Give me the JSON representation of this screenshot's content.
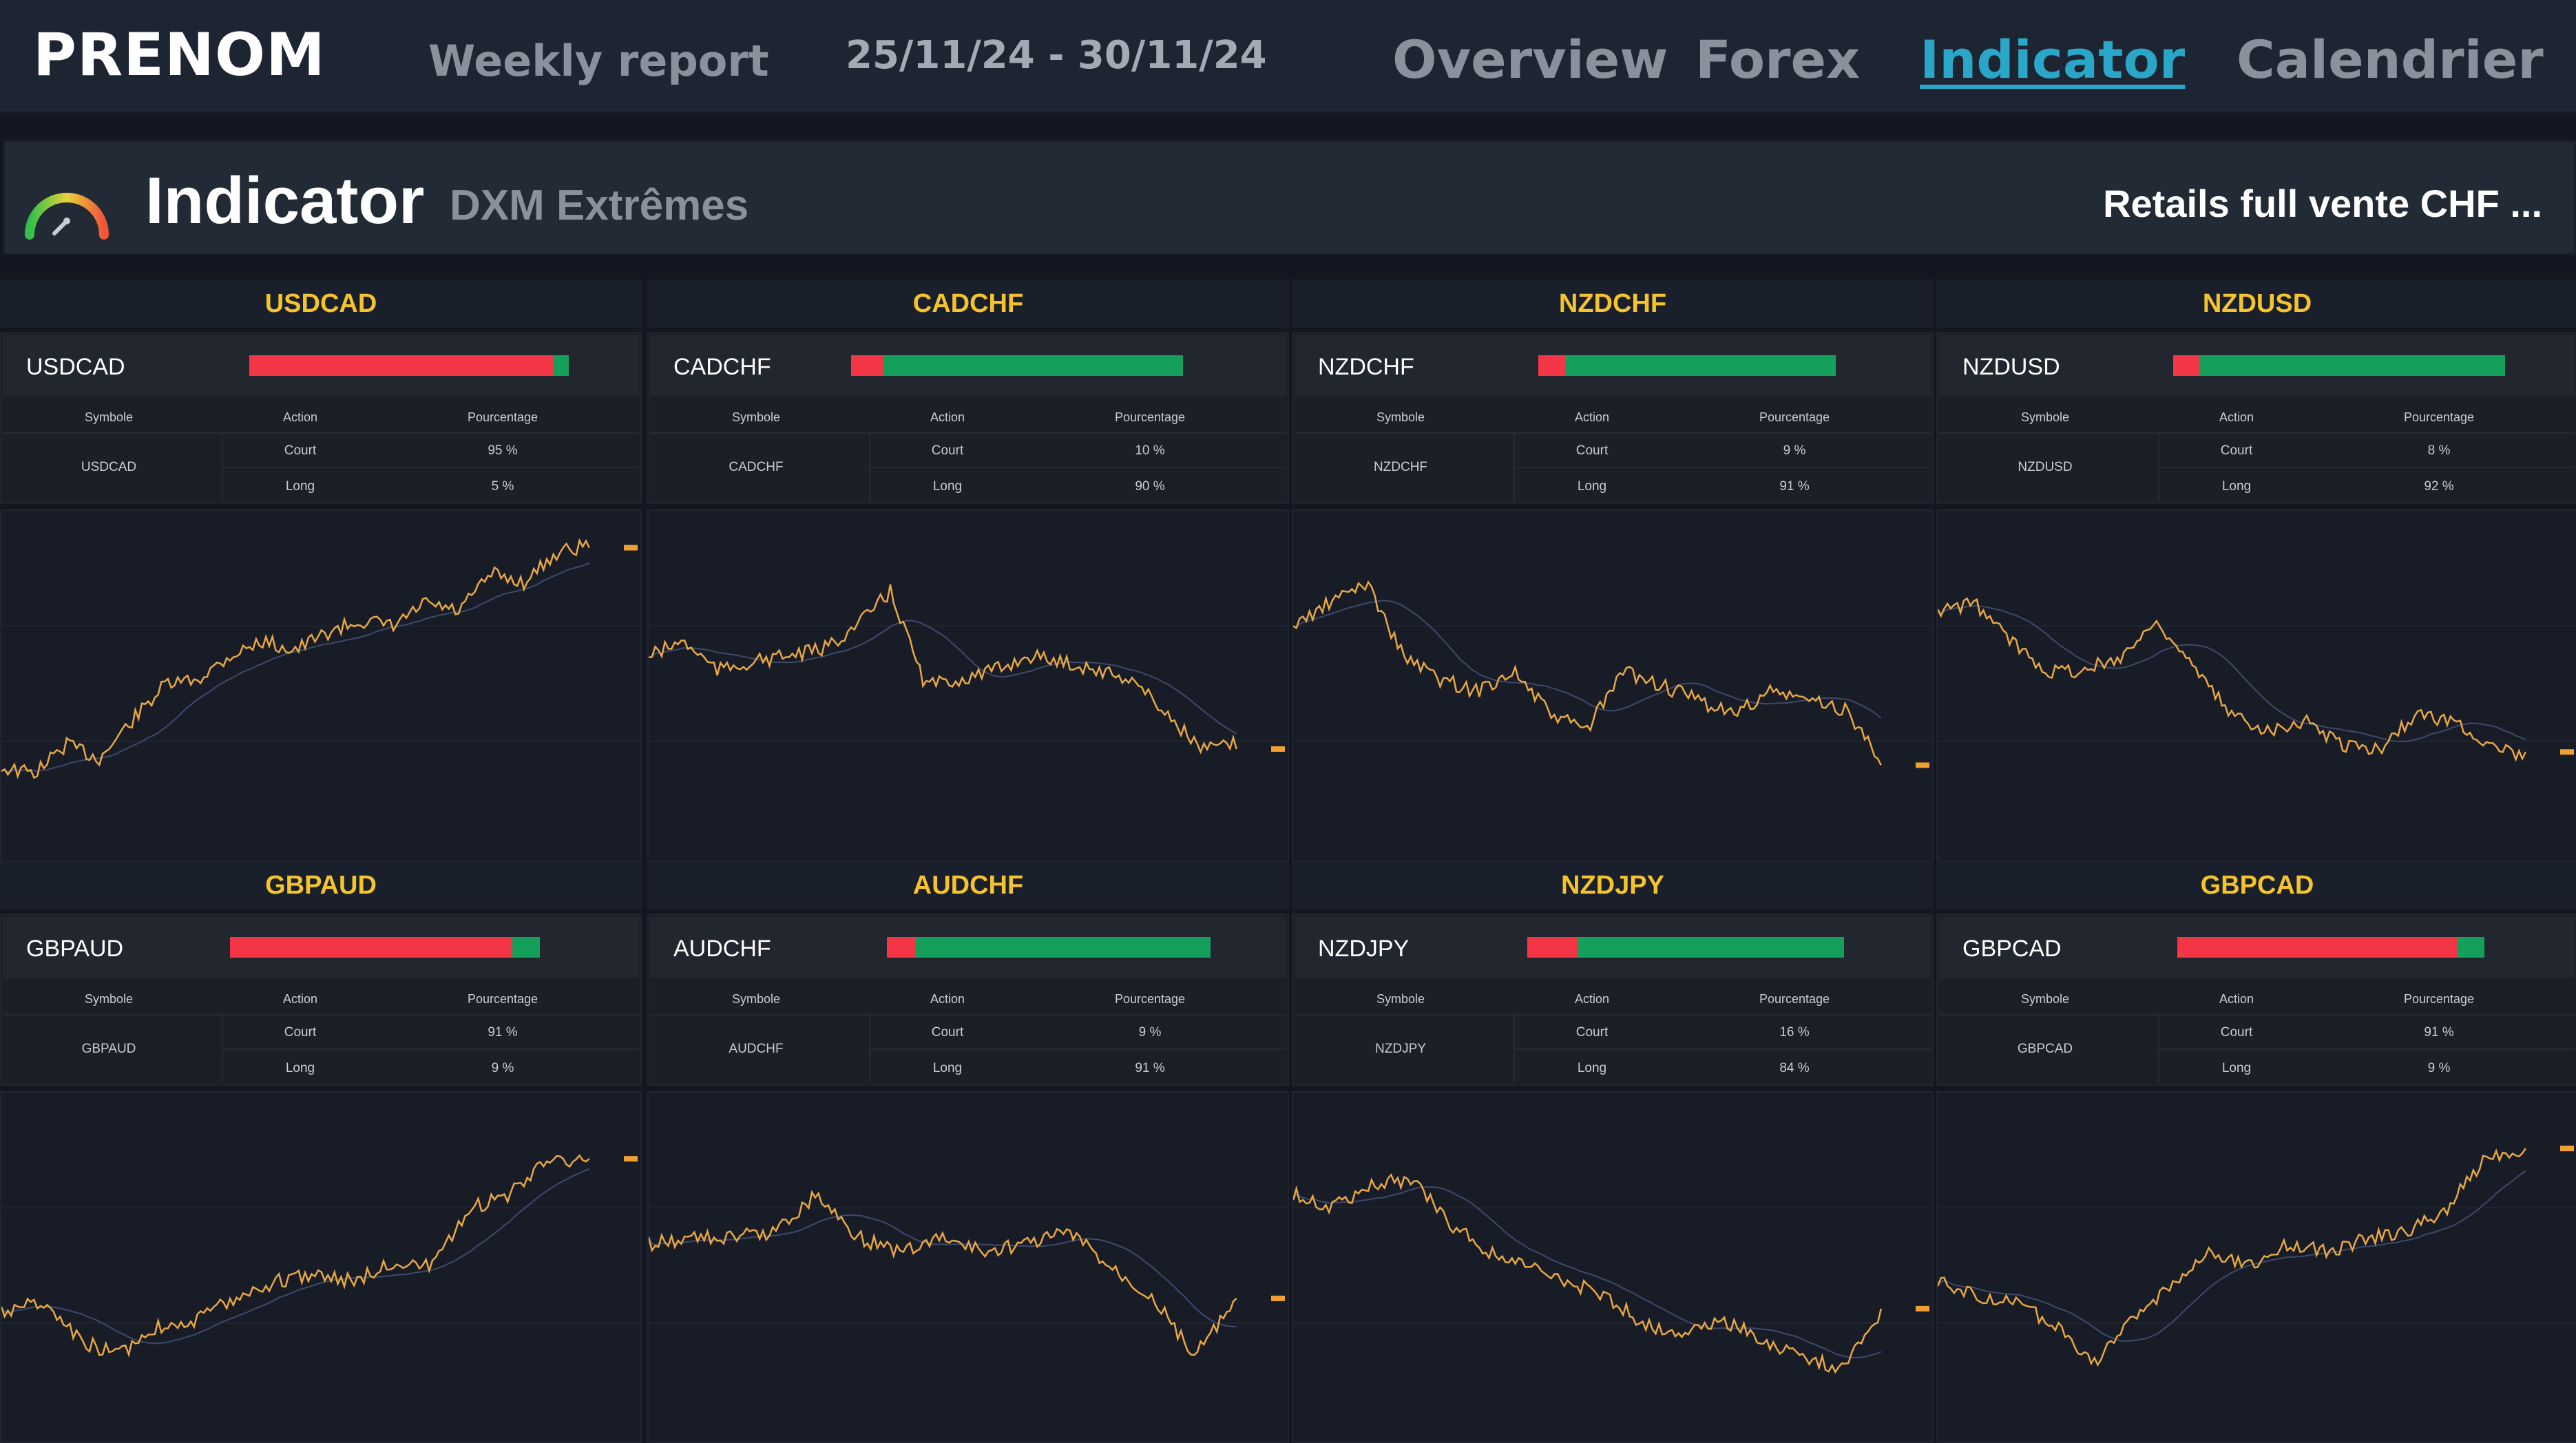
{
  "header": {
    "brand": "PRENOM",
    "subtitle": "Weekly report",
    "date_range": "25/11/24 - 30/11/24",
    "nav": [
      {
        "label": "Overview",
        "active": false
      },
      {
        "label": "Forex",
        "active": false
      },
      {
        "label": "Indicator",
        "active": true
      },
      {
        "label": "Calendrier",
        "active": false
      }
    ]
  },
  "indicator": {
    "title": "Indicator",
    "subtitle": "DXM Extrêmes",
    "right_text": "Retails full vente CHF ...",
    "icon": "gauge-icon"
  },
  "table_headers": {
    "symbol": "Symbole",
    "action": "Action",
    "percentage": "Pourcentage"
  },
  "colors": {
    "short": "#f23645",
    "long": "#14a05a",
    "title": "#f5c42c",
    "line": "#e8a844",
    "active_nav": "#2aa6c8"
  },
  "pairs": [
    {
      "symbol": "USDCAD",
      "court_label": "Court",
      "court": "95 %",
      "long_label": "Long",
      "long": "5 %",
      "court_frac": 0.95,
      "chart_data": {
        "type": "line",
        "trend": [
          0.78,
          0.8,
          0.7,
          0.75,
          0.62,
          0.5,
          0.48,
          0.4,
          0.35,
          0.38,
          0.32,
          0.28,
          0.3,
          0.22,
          0.25,
          0.12,
          0.15,
          0.05,
          0.02
        ]
      }
    },
    {
      "symbol": "CADCHF",
      "court_label": "Court",
      "court": "10 %",
      "long_label": "Long",
      "long": "90 %",
      "court_frac": 0.1,
      "chart_data": {
        "type": "line",
        "trend": [
          0.4,
          0.35,
          0.45,
          0.42,
          0.4,
          0.38,
          0.3,
          0.18,
          0.5,
          0.48,
          0.45,
          0.4,
          0.42,
          0.45,
          0.48,
          0.6,
          0.72,
          0.7
        ]
      }
    },
    {
      "symbol": "NZDCHF",
      "court_label": "Court",
      "court": "9 %",
      "long_label": "Long",
      "long": "91 %",
      "court_frac": 0.09,
      "chart_data": {
        "type": "line",
        "trend": [
          0.3,
          0.22,
          0.15,
          0.4,
          0.48,
          0.52,
          0.45,
          0.6,
          0.65,
          0.45,
          0.5,
          0.55,
          0.6,
          0.52,
          0.55,
          0.58,
          0.75
        ]
      }
    },
    {
      "symbol": "NZDUSD",
      "court_label": "Court",
      "court": "8 %",
      "long_label": "Long",
      "long": "92 %",
      "court_frac": 0.08,
      "chart_data": {
        "type": "line",
        "trend": [
          0.25,
          0.22,
          0.35,
          0.45,
          0.45,
          0.4,
          0.28,
          0.45,
          0.6,
          0.65,
          0.62,
          0.7,
          0.72,
          0.6,
          0.62,
          0.7,
          0.75
        ]
      }
    },
    {
      "symbol": "GBPAUD",
      "court_label": "Court",
      "court": "91 %",
      "long_label": "Long",
      "long": "9 %",
      "court_frac": 0.91,
      "chart_data": {
        "type": "line",
        "trend": [
          0.65,
          0.62,
          0.75,
          0.8,
          0.7,
          0.68,
          0.6,
          0.55,
          0.52,
          0.55,
          0.48,
          0.5,
          0.3,
          0.25,
          0.12,
          0.15
        ]
      }
    },
    {
      "symbol": "AUDCHF",
      "court_label": "Court",
      "court": "9 %",
      "long_label": "Long",
      "long": "91 %",
      "court_frac": 0.09,
      "chart_data": {
        "type": "line",
        "trend": [
          0.42,
          0.4,
          0.4,
          0.38,
          0.25,
          0.4,
          0.45,
          0.4,
          0.45,
          0.42,
          0.38,
          0.5,
          0.6,
          0.8,
          0.62
        ]
      }
    },
    {
      "symbol": "NZDJPY",
      "court_label": "Court",
      "court": "16 %",
      "long_label": "Long",
      "long": "84 %",
      "court_frac": 0.16,
      "chart_data": {
        "type": "line",
        "trend": [
          0.25,
          0.3,
          0.22,
          0.2,
          0.35,
          0.45,
          0.5,
          0.55,
          0.6,
          0.7,
          0.72,
          0.68,
          0.75,
          0.8,
          0.85,
          0.65
        ]
      }
    },
    {
      "symbol": "GBPCAD",
      "court_label": "Court",
      "court": "91 %",
      "long_label": "Long",
      "long": "9 %",
      "court_frac": 0.91,
      "chart_data": {
        "type": "line",
        "trend": [
          0.55,
          0.6,
          0.62,
          0.7,
          0.82,
          0.68,
          0.55,
          0.45,
          0.5,
          0.42,
          0.45,
          0.4,
          0.38,
          0.3,
          0.12,
          0.1
        ]
      }
    }
  ]
}
